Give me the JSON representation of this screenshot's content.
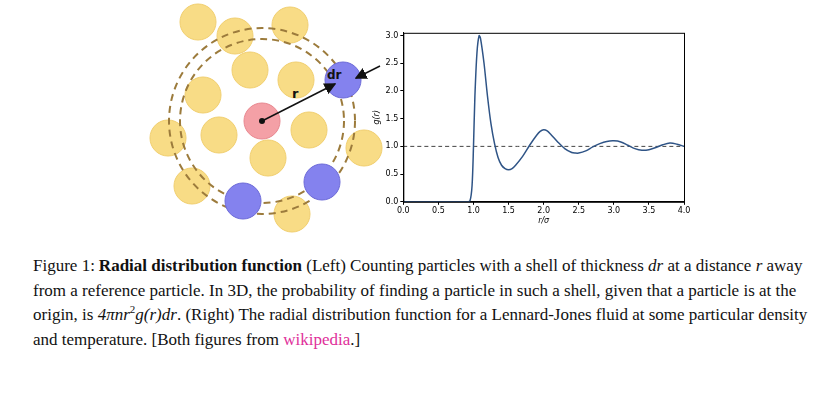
{
  "chart_data": {
    "type": "line",
    "x_label": "r/σ",
    "y_label": "g(r)",
    "x": [
      0,
      0.5,
      0.9,
      0.95,
      0.98,
      1.0,
      1.02,
      1.05,
      1.08,
      1.1,
      1.15,
      1.2,
      1.25,
      1.3,
      1.35,
      1.4,
      1.45,
      1.5,
      1.55,
      1.6,
      1.7,
      1.8,
      1.9,
      1.95,
      2.0,
      2.05,
      2.1,
      2.2,
      2.3,
      2.4,
      2.45,
      2.5,
      2.6,
      2.7,
      2.8,
      2.9,
      3.0,
      3.1,
      3.2,
      3.3,
      3.4,
      3.5,
      3.6,
      3.7,
      3.8,
      3.9,
      4.0
    ],
    "series": [
      {
        "color": "#2f5486",
        "line_style": "solid",
        "values": [
          0,
          0,
          0,
          0.02,
          0.3,
          1.0,
          1.9,
          2.7,
          3.0,
          2.95,
          2.5,
          1.9,
          1.4,
          1.05,
          0.8,
          0.66,
          0.6,
          0.58,
          0.6,
          0.66,
          0.82,
          1.02,
          1.2,
          1.27,
          1.3,
          1.28,
          1.22,
          1.08,
          0.96,
          0.89,
          0.88,
          0.88,
          0.92,
          0.99,
          1.05,
          1.09,
          1.1,
          1.08,
          1.02,
          0.96,
          0.93,
          0.94,
          0.98,
          1.03,
          1.06,
          1.04,
          1.0
        ]
      },
      {
        "color": "#444444",
        "line_style": "dashed",
        "values": [
          1,
          1,
          1,
          1,
          1,
          1,
          1,
          1,
          1,
          1,
          1,
          1,
          1,
          1,
          1,
          1,
          1,
          1,
          1,
          1,
          1,
          1,
          1,
          1,
          1,
          1,
          1,
          1,
          1,
          1,
          1,
          1,
          1,
          1,
          1,
          1,
          1,
          1,
          1,
          1,
          1,
          1,
          1,
          1,
          1,
          1,
          1
        ]
      }
    ],
    "xlim": [
      0,
      4
    ],
    "xticks": [
      {
        "value": 0,
        "label": "0.0"
      },
      {
        "value": 0.5,
        "label": "0.5"
      },
      {
        "value": 1,
        "label": "1.0"
      },
      {
        "value": 1.5,
        "label": "1.5"
      },
      {
        "value": 2,
        "label": "2.0"
      },
      {
        "value": 2.5,
        "label": "2.5"
      },
      {
        "value": 3,
        "label": "3.0"
      },
      {
        "value": 3.5,
        "label": "3.5"
      },
      {
        "value": 4,
        "label": "4.0"
      }
    ],
    "ylim": [
      0,
      3.05
    ],
    "yticks": [
      {
        "value": 0,
        "label": "0.0"
      },
      {
        "value": 0.5,
        "label": "0.5"
      },
      {
        "value": 1,
        "label": "1.0"
      },
      {
        "value": 1.5,
        "label": "1.5"
      },
      {
        "value": 2,
        "label": "2.0"
      },
      {
        "value": 2.5,
        "label": "2.5"
      },
      {
        "value": 3,
        "label": "3.0"
      }
    ],
    "grid": false
  },
  "diagram": {
    "radius_label": "r",
    "shell_label": "dr"
  },
  "caption": {
    "segments": [
      {
        "text": "Figure 1:",
        "style": "label"
      },
      {
        "text": "Radial distribution function",
        "style": "bold"
      },
      {
        "text": " (Left) Counting particles with a shell of thickness ",
        "style": "plain"
      },
      {
        "text": "dr",
        "style": "italic"
      },
      {
        "text": " at a distance ",
        "style": "plain"
      },
      {
        "text": "r",
        "style": "italic"
      },
      {
        "text": " away from a reference particle. In 3D, the probability of finding a particle in such a shell, given that a particle is at the origin, is ",
        "style": "plain"
      },
      {
        "text": "4πnr",
        "style": "math"
      },
      {
        "text": "2",
        "style": "sup"
      },
      {
        "text": "g(r)dr",
        "style": "math"
      },
      {
        "text": ". (Right) The radial distribution function for a Lennard-Jones fluid at some particular density and temperature. [Both figures from ",
        "style": "plain"
      },
      {
        "text": "wikipedia",
        "style": "link"
      },
      {
        "text": ".]",
        "style": "plain"
      }
    ]
  }
}
